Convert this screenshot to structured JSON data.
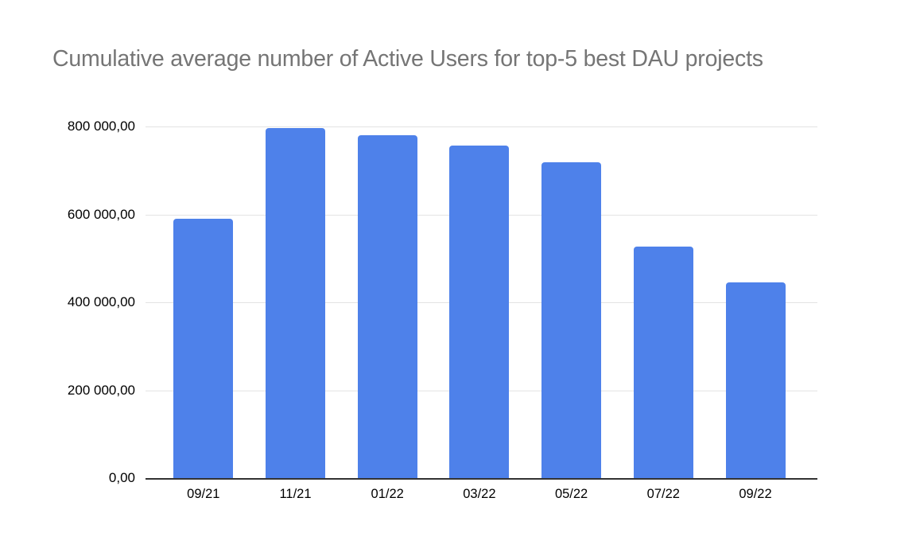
{
  "page": {
    "background_color": "#ffffff"
  },
  "chart": {
    "title_color": "#757575",
    "bar_color": "#4e81ea",
    "gridline_color": "#e3e3e3",
    "axis_line_color": "#333333",
    "tick_label_color": "#000000"
  },
  "chart_data": {
    "type": "bar",
    "title": "Cumulative average number of Active Users for top-5 best DAU projects",
    "categories": [
      "09/21",
      "11/21",
      "01/22",
      "03/22",
      "05/22",
      "07/22",
      "09/22"
    ],
    "values": [
      590000,
      797000,
      780000,
      757000,
      719000,
      526000,
      446000
    ],
    "xlabel": "",
    "ylabel": "",
    "ylim": [
      0,
      800000
    ],
    "y_ticks": [
      0,
      200000,
      400000,
      600000,
      800000
    ],
    "y_tick_labels": [
      "0,00",
      "200 000,00",
      "400 000,00",
      "600 000,00",
      "800 000,00"
    ],
    "grid": true,
    "legend": "none"
  }
}
